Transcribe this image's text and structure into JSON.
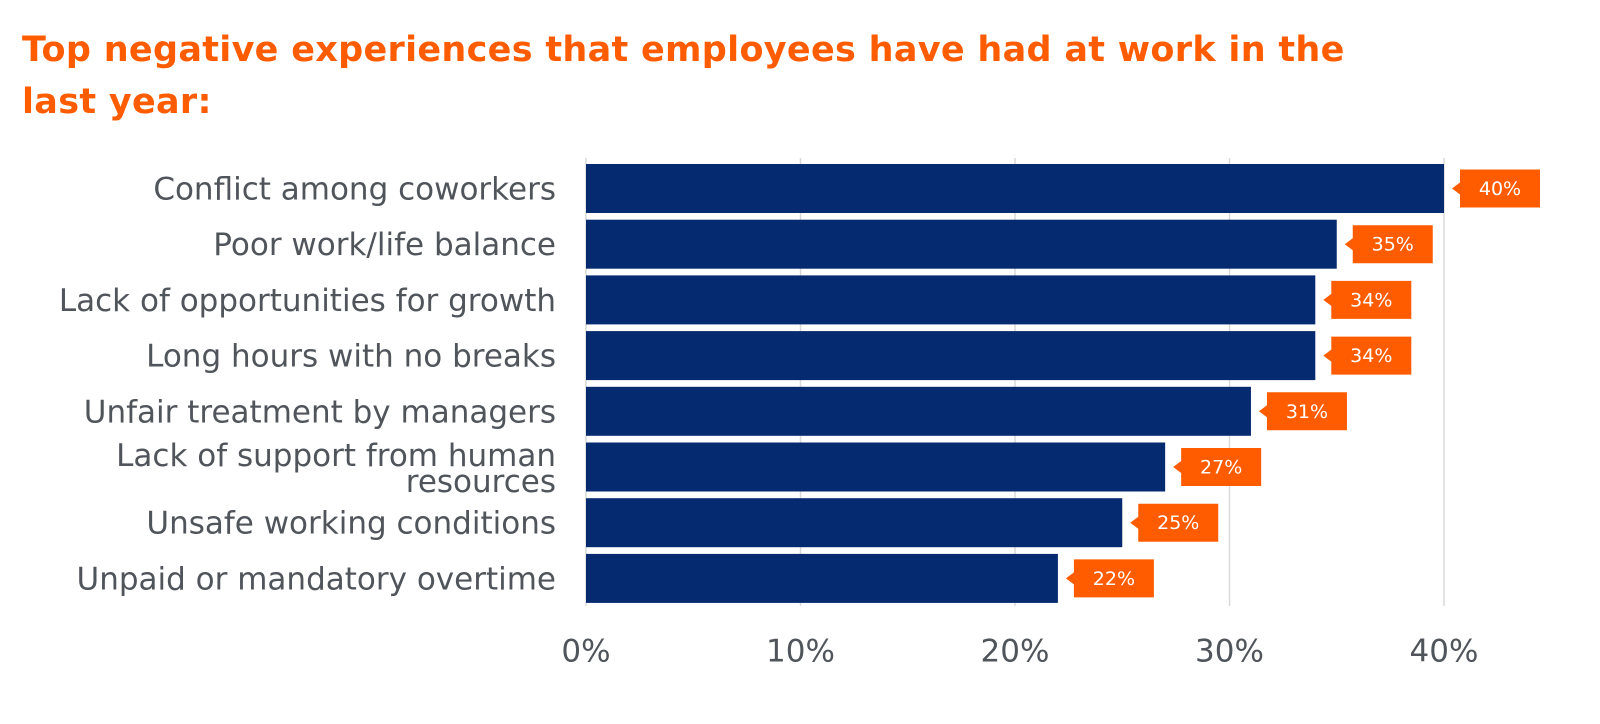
{
  "title": "Top negative experiences that employees have had at work in the last year:",
  "colors": {
    "title": "#ff5c00",
    "bar": "#052a70",
    "callout": "#ff5c00",
    "callout_text": "#ffffff",
    "axis_text": "#50555c",
    "grid": "#d9d9d9"
  },
  "chart_data": {
    "type": "bar",
    "orientation": "horizontal",
    "title": "Top negative experiences that employees have had at work in the last year:",
    "categories": [
      "Conflict among coworkers",
      "Poor work/life balance",
      "Lack of opportunities for growth",
      "Long hours with no breaks",
      "Unfair treatment by managers",
      "Lack of support from human resources",
      "Unsafe working conditions",
      "Unpaid or mandatory overtime"
    ],
    "category_lines": [
      [
        "Conflict among coworkers"
      ],
      [
        "Poor work/life balance"
      ],
      [
        "Lack of opportunities for growth"
      ],
      [
        "Long hours with no breaks"
      ],
      [
        "Unfair treatment by managers"
      ],
      [
        "Lack of support from human",
        "resources"
      ],
      [
        "Unsafe working conditions"
      ],
      [
        "Unpaid or mandatory overtime"
      ]
    ],
    "values": [
      40,
      35,
      34,
      34,
      31,
      27,
      25,
      22
    ],
    "data_labels": [
      "40%",
      "35%",
      "34%",
      "34%",
      "31%",
      "27%",
      "25%",
      "22%"
    ],
    "xlim": [
      0,
      40
    ],
    "x_ticks": [
      0,
      10,
      20,
      30,
      40
    ],
    "x_tick_labels": [
      "0%",
      "10%",
      "20%",
      "30%",
      "40%"
    ],
    "xlabel": "",
    "ylabel": "",
    "grid": "vertical",
    "legend": "none"
  }
}
